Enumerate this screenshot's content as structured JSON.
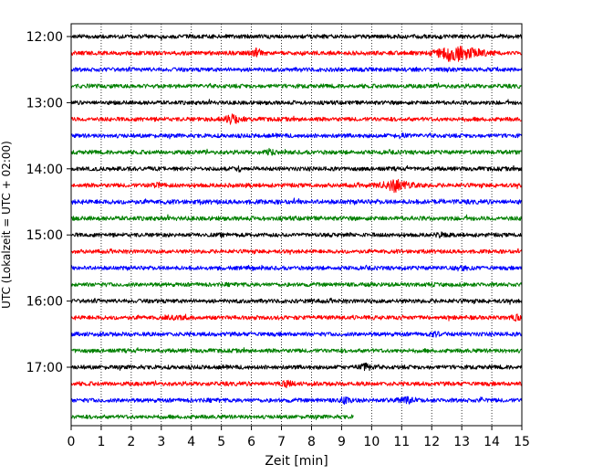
{
  "chart_data": {
    "type": "line",
    "title": "",
    "xlabel": "Zeit  [min]",
    "ylabel": "UTC (Lokalzeit = UTC + 02:00)",
    "xlim": [
      0,
      15
    ],
    "x_ticks": [
      "0",
      "1",
      "2",
      "3",
      "4",
      "5",
      "6",
      "7",
      "8",
      "9",
      "10",
      "11",
      "12",
      "13",
      "14",
      "15"
    ],
    "y_ticks": [
      "12:00",
      "13:00",
      "14:00",
      "15:00",
      "16:00",
      "17:00"
    ],
    "grid": "vertical-dotted",
    "row_minutes": 15,
    "row_colors": [
      "#000000",
      "#ff0000",
      "#0000ff",
      "#008000"
    ],
    "traces": [
      {
        "start": "12:00",
        "color": "black",
        "end_min": 15,
        "noise": 0.55,
        "events": []
      },
      {
        "start": "12:15",
        "color": "red",
        "end_min": 15,
        "noise": 0.6,
        "events": [
          {
            "min": 6.2,
            "amp": 5,
            "dur": 0.5
          },
          {
            "min": 13.0,
            "amp": 7,
            "dur": 1.6
          },
          {
            "min": 12.6,
            "amp": 5,
            "dur": 0.8
          }
        ]
      },
      {
        "start": "12:30",
        "color": "blue",
        "end_min": 15,
        "noise": 0.6,
        "events": []
      },
      {
        "start": "12:45",
        "color": "green",
        "end_min": 15,
        "noise": 0.6,
        "events": []
      },
      {
        "start": "13:00",
        "color": "black",
        "end_min": 15,
        "noise": 0.55,
        "events": []
      },
      {
        "start": "13:15",
        "color": "red",
        "end_min": 15,
        "noise": 0.6,
        "events": [
          {
            "min": 5.35,
            "amp": 6,
            "dur": 0.6
          }
        ]
      },
      {
        "start": "13:30",
        "color": "blue",
        "end_min": 15,
        "noise": 0.6,
        "events": [
          {
            "min": 11.0,
            "amp": 2,
            "dur": 0.3
          }
        ]
      },
      {
        "start": "13:45",
        "color": "green",
        "end_min": 15,
        "noise": 0.6,
        "events": [
          {
            "min": 6.6,
            "amp": 3,
            "dur": 0.3
          }
        ]
      },
      {
        "start": "14:00",
        "color": "black",
        "end_min": 15,
        "noise": 0.6,
        "events": [
          {
            "min": 5.6,
            "amp": 2,
            "dur": 0.3
          }
        ]
      },
      {
        "start": "14:15",
        "color": "red",
        "end_min": 15,
        "noise": 0.6,
        "events": [
          {
            "min": 10.8,
            "amp": 7,
            "dur": 1.0
          },
          {
            "min": 2.9,
            "amp": 2,
            "dur": 0.4
          }
        ]
      },
      {
        "start": "14:30",
        "color": "blue",
        "end_min": 15,
        "noise": 0.8,
        "events": [
          {
            "min": 12.4,
            "amp": 2,
            "dur": 0.4
          }
        ]
      },
      {
        "start": "14:45",
        "color": "green",
        "end_min": 15,
        "noise": 0.7,
        "events": []
      },
      {
        "start": "15:00",
        "color": "black",
        "end_min": 15,
        "noise": 0.55,
        "events": [
          {
            "min": 12.3,
            "amp": 2,
            "dur": 0.3
          }
        ]
      },
      {
        "start": "15:15",
        "color": "red",
        "end_min": 15,
        "noise": 0.5,
        "events": []
      },
      {
        "start": "15:30",
        "color": "blue",
        "end_min": 15,
        "noise": 0.55,
        "events": [
          {
            "min": 13.0,
            "amp": 2,
            "dur": 0.6
          }
        ]
      },
      {
        "start": "15:45",
        "color": "green",
        "end_min": 15,
        "noise": 0.55,
        "events": []
      },
      {
        "start": "16:00",
        "color": "black",
        "end_min": 15,
        "noise": 0.6,
        "events": [
          {
            "min": 7.9,
            "amp": 2,
            "dur": 0.3
          }
        ]
      },
      {
        "start": "16:15",
        "color": "red",
        "end_min": 15,
        "noise": 0.6,
        "events": [
          {
            "min": 3.5,
            "amp": 3,
            "dur": 0.4
          },
          {
            "min": 14.8,
            "amp": 3,
            "dur": 0.3
          }
        ]
      },
      {
        "start": "16:30",
        "color": "blue",
        "end_min": 15,
        "noise": 0.6,
        "events": [
          {
            "min": 12.1,
            "amp": 2,
            "dur": 0.4
          }
        ]
      },
      {
        "start": "16:45",
        "color": "green",
        "end_min": 15,
        "noise": 0.55,
        "events": []
      },
      {
        "start": "17:00",
        "color": "black",
        "end_min": 15,
        "noise": 0.6,
        "events": [
          {
            "min": 9.8,
            "amp": 4,
            "dur": 0.4
          }
        ]
      },
      {
        "start": "17:15",
        "color": "red",
        "end_min": 15,
        "noise": 0.6,
        "events": [
          {
            "min": 7.2,
            "amp": 3,
            "dur": 0.4
          }
        ]
      },
      {
        "start": "17:30",
        "color": "blue",
        "end_min": 15,
        "noise": 0.6,
        "events": [
          {
            "min": 9.1,
            "amp": 3,
            "dur": 0.4
          },
          {
            "min": 11.2,
            "amp": 3,
            "dur": 0.7
          },
          {
            "min": 13.7,
            "amp": 3,
            "dur": 0.2
          }
        ]
      },
      {
        "start": "17:45",
        "color": "green",
        "end_min": 9.4,
        "noise": 0.5,
        "events": []
      }
    ]
  }
}
